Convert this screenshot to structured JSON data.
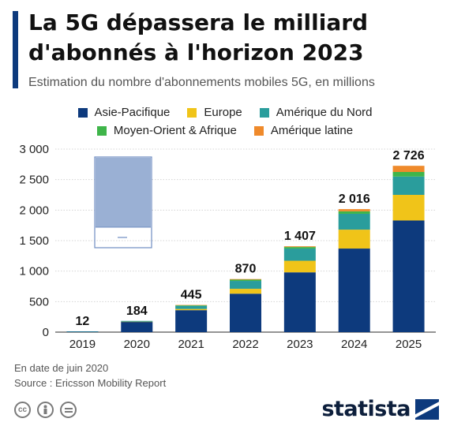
{
  "header": {
    "title": "La 5G dépassera le milliard d'abonnés à l'horizon 2023",
    "subtitle": "Estimation du nombre d'abonnements mobiles 5G, en millions"
  },
  "legend": [
    {
      "label": "Asie-Pacifique",
      "color": "#0d3a7d"
    },
    {
      "label": "Europe",
      "color": "#f0c419"
    },
    {
      "label": "Amérique du Nord",
      "color": "#2a9d9c"
    },
    {
      "label": "Moyen-Orient & Afrique",
      "color": "#3fb54a"
    },
    {
      "label": "Amérique latine",
      "color": "#ef8a2b"
    }
  ],
  "chart_data": {
    "type": "bar",
    "stacked": true,
    "categories": [
      "2019",
      "2020",
      "2021",
      "2022",
      "2023",
      "2024",
      "2025"
    ],
    "series": [
      {
        "name": "Asie-Pacifique",
        "color": "#0d3a7d",
        "values": [
          10,
          170,
          360,
          630,
          980,
          1370,
          1830
        ]
      },
      {
        "name": "Europe",
        "color": "#f0c419",
        "values": [
          0,
          2,
          20,
          80,
          190,
          310,
          420
        ]
      },
      {
        "name": "Amérique du Nord",
        "color": "#2a9d9c",
        "values": [
          2,
          12,
          50,
          130,
          200,
          260,
          300
        ]
      },
      {
        "name": "Moyen-Orient & Afrique",
        "color": "#3fb54a",
        "values": [
          0,
          0,
          10,
          20,
          25,
          40,
          75
        ]
      },
      {
        "name": "Amérique latine",
        "color": "#ef8a2b",
        "values": [
          0,
          0,
          5,
          10,
          12,
          36,
          101
        ]
      }
    ],
    "totals": [
      12,
      184,
      445,
      870,
      1407,
      2016,
      2726
    ],
    "total_labels": [
      "12",
      "184",
      "445",
      "870",
      "1 407",
      "2 016",
      "2 726"
    ],
    "y_ticks": [
      "0",
      "500",
      "1 000",
      "1 500",
      "2 000",
      "2 500",
      "3 000"
    ],
    "ylim": [
      0,
      3000
    ],
    "grid": true
  },
  "footer": {
    "note": "En date de juin 2020",
    "source": "Source : Ericsson Mobility Report",
    "cc_icons": [
      "cc-icon",
      "by-icon",
      "nd-icon"
    ],
    "brand": "statista"
  }
}
